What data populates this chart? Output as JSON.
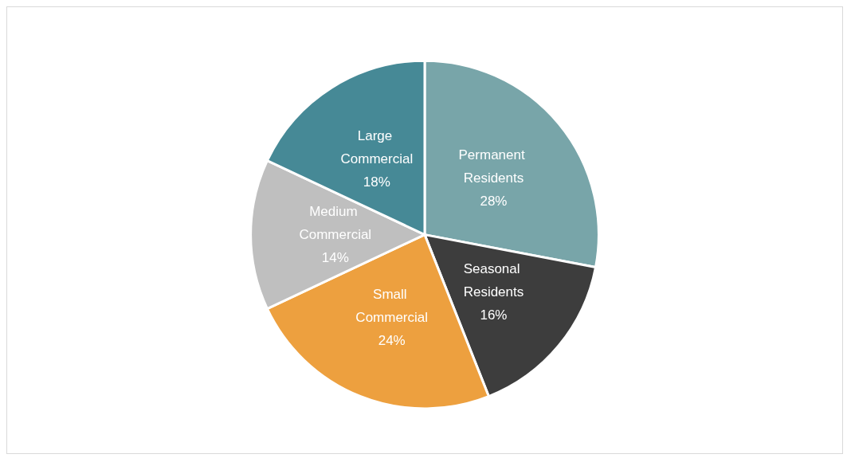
{
  "chart_data": {
    "type": "pie",
    "categories": [
      "Permanent Residents",
      "Seasonal Residents",
      "Small Commercial",
      "Medium Commercial",
      "Large Commercial"
    ],
    "values": [
      28,
      16,
      24,
      14,
      18
    ],
    "colors": [
      "#78a5a9",
      "#3d3d3d",
      "#eda03f",
      "#bfbfbf",
      "#468996"
    ],
    "value_labels": [
      "28%",
      "16%",
      "24%",
      "14%",
      "18%"
    ],
    "legend": false
  }
}
